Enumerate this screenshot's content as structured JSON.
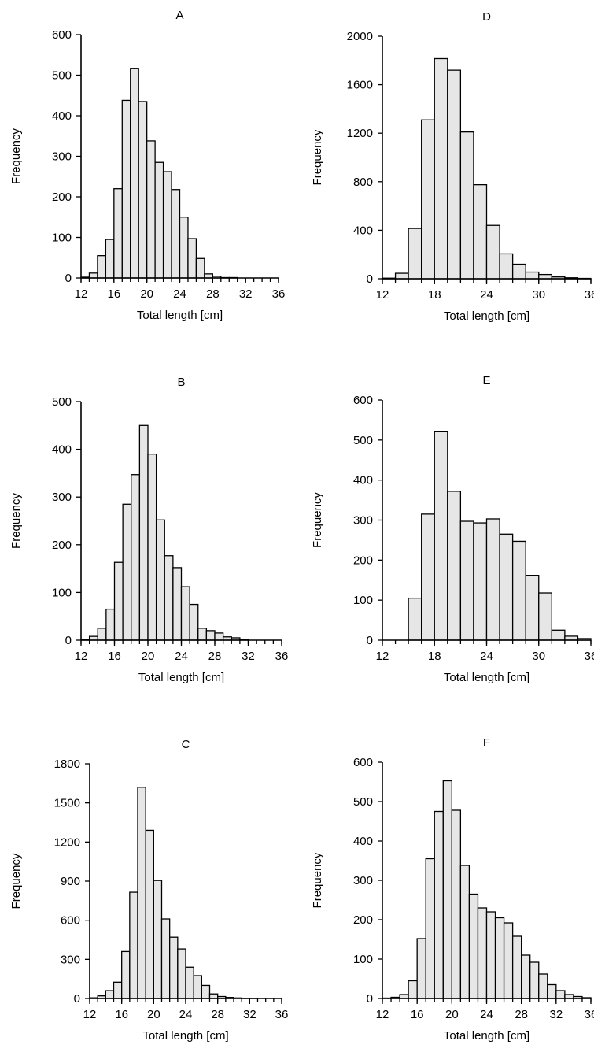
{
  "chart_data": [
    {
      "panel": "A",
      "type": "bar",
      "title": "A",
      "xlabel": "Total length [cm]",
      "ylabel": "Frequency",
      "xlim": [
        12,
        36
      ],
      "ylim": [
        0,
        600
      ],
      "xticks": [
        "12",
        "16",
        "20",
        "24",
        "28",
        "32",
        "36"
      ],
      "yticks": [
        "0",
        "100",
        "200",
        "300",
        "400",
        "500",
        "600"
      ],
      "bin_width": 1,
      "x": [
        12,
        13,
        14,
        15,
        16,
        17,
        18,
        19,
        20,
        21,
        22,
        23,
        24,
        25,
        26,
        27,
        28,
        29,
        30,
        31,
        32,
        33,
        34,
        35
      ],
      "values": [
        2,
        12,
        55,
        95,
        220,
        438,
        517,
        435,
        338,
        285,
        262,
        218,
        150,
        97,
        48,
        10,
        4,
        1,
        1,
        0,
        0,
        0,
        0,
        0
      ]
    },
    {
      "panel": "D",
      "type": "bar",
      "title": "D",
      "xlabel": "Total length [cm]",
      "ylabel": "Frequency",
      "xlim": [
        12,
        36
      ],
      "ylim": [
        0,
        2000
      ],
      "xticks": [
        "12",
        "18",
        "24",
        "30",
        "36"
      ],
      "yticks": [
        "0",
        "400",
        "800",
        "1200",
        "1600",
        "2000"
      ],
      "bin_width": 1.5,
      "x": [
        12,
        13.5,
        15,
        16.5,
        18,
        19.5,
        21,
        22.5,
        24,
        25.5,
        27,
        28.5,
        30,
        31.5,
        33,
        34.5
      ],
      "values": [
        5,
        45,
        415,
        1310,
        1815,
        1720,
        1210,
        775,
        440,
        205,
        120,
        55,
        35,
        15,
        8,
        3
      ]
    },
    {
      "panel": "B",
      "type": "bar",
      "title": "B",
      "xlabel": "Total length [cm]",
      "ylabel": "Frequency",
      "xlim": [
        12,
        36
      ],
      "ylim": [
        0,
        500
      ],
      "xticks": [
        "12",
        "16",
        "20",
        "24",
        "28",
        "32",
        "36"
      ],
      "yticks": [
        "0",
        "100",
        "200",
        "300",
        "400",
        "500"
      ],
      "bin_width": 1,
      "x": [
        12,
        13,
        14,
        15,
        16,
        17,
        18,
        19,
        20,
        21,
        22,
        23,
        24,
        25,
        26,
        27,
        28,
        29,
        30,
        31,
        32,
        33,
        34,
        35
      ],
      "values": [
        2,
        8,
        25,
        65,
        163,
        285,
        347,
        450,
        390,
        252,
        177,
        152,
        112,
        75,
        25,
        20,
        15,
        7,
        5,
        1,
        0,
        0,
        0,
        0
      ]
    },
    {
      "panel": "E",
      "type": "bar",
      "title": "E",
      "xlabel": "Total length [cm]",
      "ylabel": "Frequency",
      "xlim": [
        12,
        36
      ],
      "ylim": [
        0,
        600
      ],
      "xticks": [
        "12",
        "18",
        "24",
        "30",
        "36"
      ],
      "yticks": [
        "0",
        "100",
        "200",
        "300",
        "400",
        "500",
        "600"
      ],
      "bin_width": 1.5,
      "x": [
        12,
        13.5,
        15,
        16.5,
        18,
        19.5,
        21,
        22.5,
        24,
        25.5,
        27,
        28.5,
        30,
        31.5,
        33,
        34.5
      ],
      "values": [
        0,
        0,
        105,
        315,
        522,
        372,
        297,
        293,
        303,
        265,
        247,
        162,
        118,
        25,
        10,
        4
      ]
    },
    {
      "panel": "C",
      "type": "bar",
      "title": "C",
      "xlabel": "Total length [cm]",
      "ylabel": "Frequency",
      "xlim": [
        12,
        36
      ],
      "ylim": [
        0,
        1800
      ],
      "xticks": [
        "12",
        "16",
        "20",
        "24",
        "28",
        "32",
        "36"
      ],
      "yticks": [
        "0",
        "300",
        "600",
        "900",
        "1200",
        "1500",
        "1800"
      ],
      "bin_width": 1,
      "x": [
        12,
        13,
        14,
        15,
        16,
        17,
        18,
        19,
        20,
        21,
        22,
        23,
        24,
        25,
        26,
        27,
        28,
        29,
        30,
        31,
        32,
        33,
        34,
        35
      ],
      "values": [
        5,
        20,
        60,
        125,
        360,
        815,
        1620,
        1290,
        905,
        610,
        470,
        380,
        240,
        175,
        100,
        35,
        15,
        8,
        4,
        2,
        1,
        0,
        0,
        0
      ]
    },
    {
      "panel": "F",
      "type": "bar",
      "title": "F",
      "xlabel": "Total length [cm]",
      "ylabel": "Frequency",
      "xlim": [
        12,
        36
      ],
      "ylim": [
        0,
        600
      ],
      "xticks": [
        "12",
        "16",
        "20",
        "24",
        "28",
        "32",
        "36"
      ],
      "yticks": [
        "0",
        "100",
        "200",
        "300",
        "400",
        "500",
        "600"
      ],
      "bin_width": 1,
      "x": [
        12,
        13,
        14,
        15,
        16,
        17,
        18,
        19,
        20,
        21,
        22,
        23,
        24,
        25,
        26,
        27,
        28,
        29,
        30,
        31,
        32,
        33,
        34,
        35
      ],
      "values": [
        1,
        3,
        10,
        45,
        152,
        355,
        475,
        553,
        478,
        338,
        265,
        230,
        220,
        205,
        192,
        158,
        110,
        92,
        62,
        35,
        20,
        10,
        5,
        2
      ]
    }
  ]
}
